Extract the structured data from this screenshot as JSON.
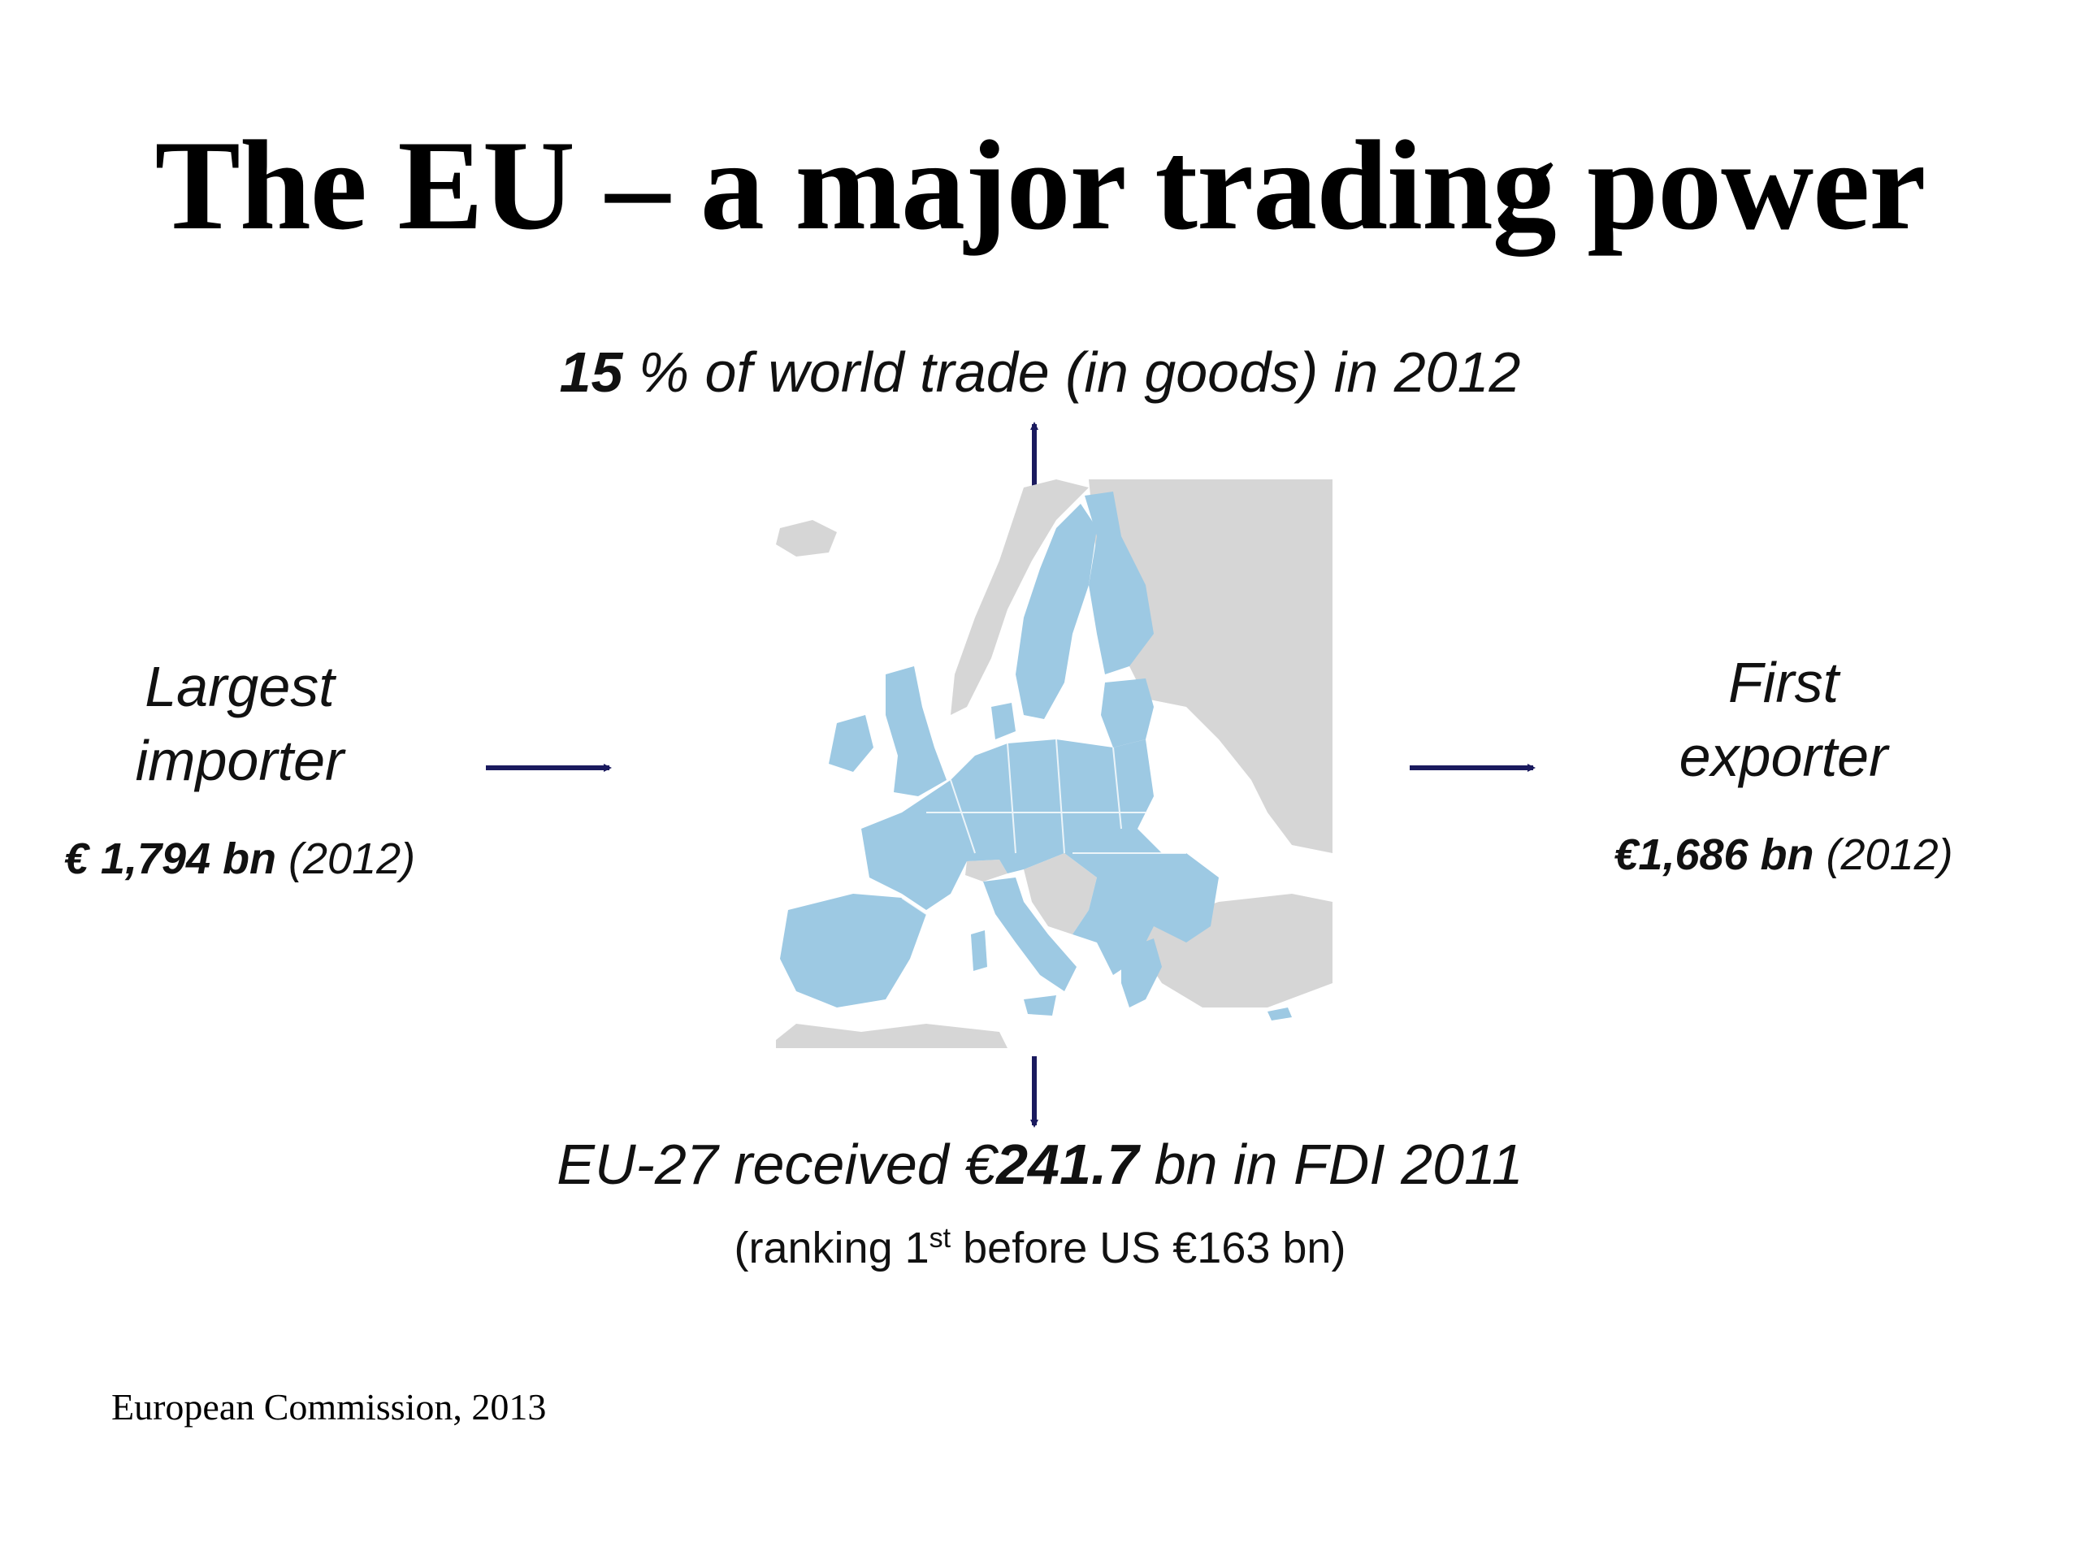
{
  "slide": {
    "title": "The EU – a major trading power",
    "top_stat": {
      "bold": "15",
      "rest": " % of world trade (in goods) in 2012"
    },
    "left": {
      "line1": "Largest",
      "line2": "importer",
      "value_bold": "€ 1,794 bn",
      "value_year": " (2012)"
    },
    "right": {
      "line1": "First",
      "line2": "exporter",
      "value_bold": "€1,686 bn",
      "value_year": " (2012)"
    },
    "bottom_stat": {
      "part1": "EU-27  received €",
      "bold": "241.7",
      "part2": " bn in FDI 2011"
    },
    "bottom_sub": {
      "pre": "(ranking 1",
      "sup": "st",
      "post": " before US €163 bn)"
    },
    "source": "European Commission, 2013"
  },
  "colors": {
    "eu": "#9dc9e3",
    "non_eu": "#d6d6d6",
    "arrow": "#1a1a5e"
  }
}
